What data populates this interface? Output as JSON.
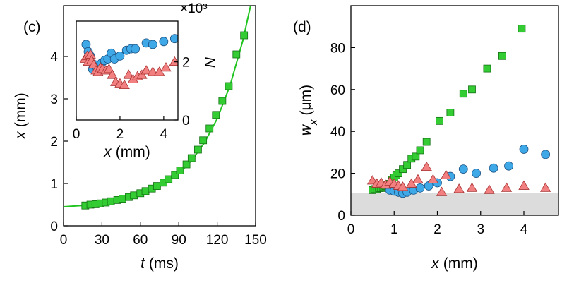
{
  "chart_data": [
    {
      "type": "scatter",
      "panel_label": "(c)",
      "xlabel_var": "t",
      "xlabel_unit": "(ms)",
      "ylabel_var": "x",
      "ylabel_unit": "(mm)",
      "xlim": [
        0,
        150
      ],
      "xticks": [
        0,
        30,
        60,
        90,
        120,
        150
      ],
      "ylim": [
        0,
        5.2
      ],
      "yticks": [
        0,
        1,
        2,
        3,
        4
      ],
      "y_side": "left",
      "series": [
        {
          "type": "line",
          "color": "#1fc41f",
          "x": [
            0,
            10,
            20,
            30,
            40,
            50,
            60,
            70,
            80,
            90,
            100,
            110,
            120,
            130,
            140,
            146
          ],
          "values": [
            0.45,
            0.47,
            0.49,
            0.53,
            0.58,
            0.64,
            0.73,
            0.85,
            1.01,
            1.23,
            1.54,
            1.96,
            2.53,
            3.31,
            4.37,
            5.19
          ]
        },
        {
          "type": "scatter",
          "marker": "square",
          "color": "#33cc33",
          "edge": "#137013",
          "x": [
            17,
            21,
            25,
            29,
            33,
            37,
            42,
            46,
            51,
            55,
            60,
            64,
            69,
            73,
            78,
            82,
            87,
            91,
            96,
            100,
            105,
            109,
            114,
            119,
            124,
            129,
            135,
            141
          ],
          "values": [
            0.48,
            0.5,
            0.51,
            0.53,
            0.55,
            0.58,
            0.61,
            0.64,
            0.68,
            0.72,
            0.77,
            0.82,
            0.88,
            0.94,
            1.02,
            1.1,
            1.2,
            1.31,
            1.45,
            1.6,
            1.8,
            2.02,
            2.3,
            2.62,
            2.95,
            3.3,
            4.05,
            4.5
          ]
        }
      ]
    },
    {
      "type": "scatter",
      "xlabel_var": "x",
      "xlabel_unit": "(mm)",
      "ylabel_var": "N",
      "y_multiplier": "×10³",
      "xlim": [
        0,
        4.65
      ],
      "xticks": [
        0,
        2,
        4
      ],
      "ylim": [
        0,
        3.4
      ],
      "yticks": [
        0,
        2
      ],
      "y_side": "right",
      "series": [
        {
          "type": "scatter",
          "marker": "circle",
          "color": "#3fa9e8",
          "edge": "#1a4f80",
          "x": [
            0.45,
            0.55,
            0.65,
            0.75,
            0.85,
            0.95,
            1.05,
            1.15,
            1.3,
            1.45,
            1.6,
            1.75,
            2.0,
            2.3,
            2.5,
            2.7,
            3.2,
            3.5,
            4.0,
            4.5
          ],
          "values": [
            2.6,
            2.35,
            2.2,
            1.75,
            1.9,
            1.8,
            1.85,
            1.95,
            2.05,
            2.1,
            2.3,
            2.1,
            2.2,
            2.4,
            2.45,
            2.45,
            2.65,
            2.6,
            2.7,
            2.8
          ]
        },
        {
          "type": "scatter",
          "marker": "triangle",
          "color": "#f28080",
          "edge": "#a83232",
          "x": [
            0.4,
            0.5,
            0.55,
            0.65,
            0.7,
            0.8,
            0.9,
            1.0,
            1.1,
            1.2,
            1.35,
            1.5,
            1.65,
            1.8,
            2.0,
            2.2,
            2.4,
            2.6,
            2.8,
            3.0,
            3.2,
            3.5,
            3.8,
            4.1,
            4.5
          ],
          "values": [
            2.1,
            2.2,
            2.0,
            2.25,
            2.05,
            1.9,
            1.7,
            1.65,
            1.8,
            1.75,
            1.7,
            1.75,
            1.55,
            1.3,
            1.25,
            1.2,
            1.55,
            1.4,
            1.5,
            1.55,
            1.7,
            1.65,
            1.65,
            1.8,
            2.0
          ]
        }
      ]
    },
    {
      "type": "scatter",
      "panel_label": "(d)",
      "xlabel_var": "x",
      "xlabel_unit": "(mm)",
      "ylabel_var": "w",
      "ylabel_sub": "x",
      "ylabel_unit": "(μm)",
      "xlim": [
        0,
        4.8
      ],
      "xticks": [
        0,
        1,
        2,
        3,
        4
      ],
      "ylim": [
        0,
        100
      ],
      "yticks": [
        0,
        20,
        40,
        60,
        80
      ],
      "y_side": "left",
      "band": [
        0,
        10.5
      ],
      "band_color": "#dcdcdc",
      "series": [
        {
          "type": "scatter",
          "marker": "square",
          "color": "#33cc33",
          "edge": "#137013",
          "x": [
            0.5,
            0.55,
            0.6,
            0.65,
            0.7,
            0.75,
            0.8,
            0.85,
            0.9,
            0.95,
            1.0,
            1.05,
            1.1,
            1.2,
            1.3,
            1.4,
            1.5,
            1.6,
            1.75,
            2.05,
            2.3,
            2.6,
            2.8,
            3.15,
            3.5,
            3.95
          ],
          "values": [
            12,
            12.5,
            12.5,
            13,
            13,
            13.5,
            14,
            14.5,
            15,
            17,
            18,
            19,
            20,
            22,
            24,
            27,
            28,
            31,
            35,
            45,
            49,
            58,
            60,
            70,
            76,
            89
          ]
        },
        {
          "type": "scatter",
          "marker": "circle",
          "color": "#3fa9e8",
          "edge": "#1a4f80",
          "x": [
            0.9,
            1.0,
            1.1,
            1.2,
            1.3,
            1.45,
            1.6,
            1.8,
            2.0,
            2.3,
            2.6,
            2.9,
            3.3,
            3.65,
            4.0,
            4.5
          ],
          "values": [
            12,
            11.5,
            11,
            10.5,
            11,
            12,
            13,
            14,
            15.5,
            18.5,
            22,
            20,
            22.5,
            23.5,
            31.5,
            29
          ]
        },
        {
          "type": "scatter",
          "marker": "triangle",
          "color": "#f28080",
          "edge": "#a83232",
          "x": [
            0.5,
            0.6,
            0.7,
            0.8,
            0.9,
            1.0,
            1.1,
            1.2,
            1.4,
            1.55,
            1.75,
            1.9,
            2.1,
            2.2,
            2.5,
            2.8,
            3.2,
            3.6,
            4.0,
            4.5
          ],
          "values": [
            16.5,
            15,
            15.5,
            14.5,
            16,
            15,
            14,
            13.5,
            15,
            17,
            23,
            17,
            11,
            19,
            12.5,
            13,
            12,
            13,
            14,
            13
          ]
        }
      ]
    }
  ]
}
